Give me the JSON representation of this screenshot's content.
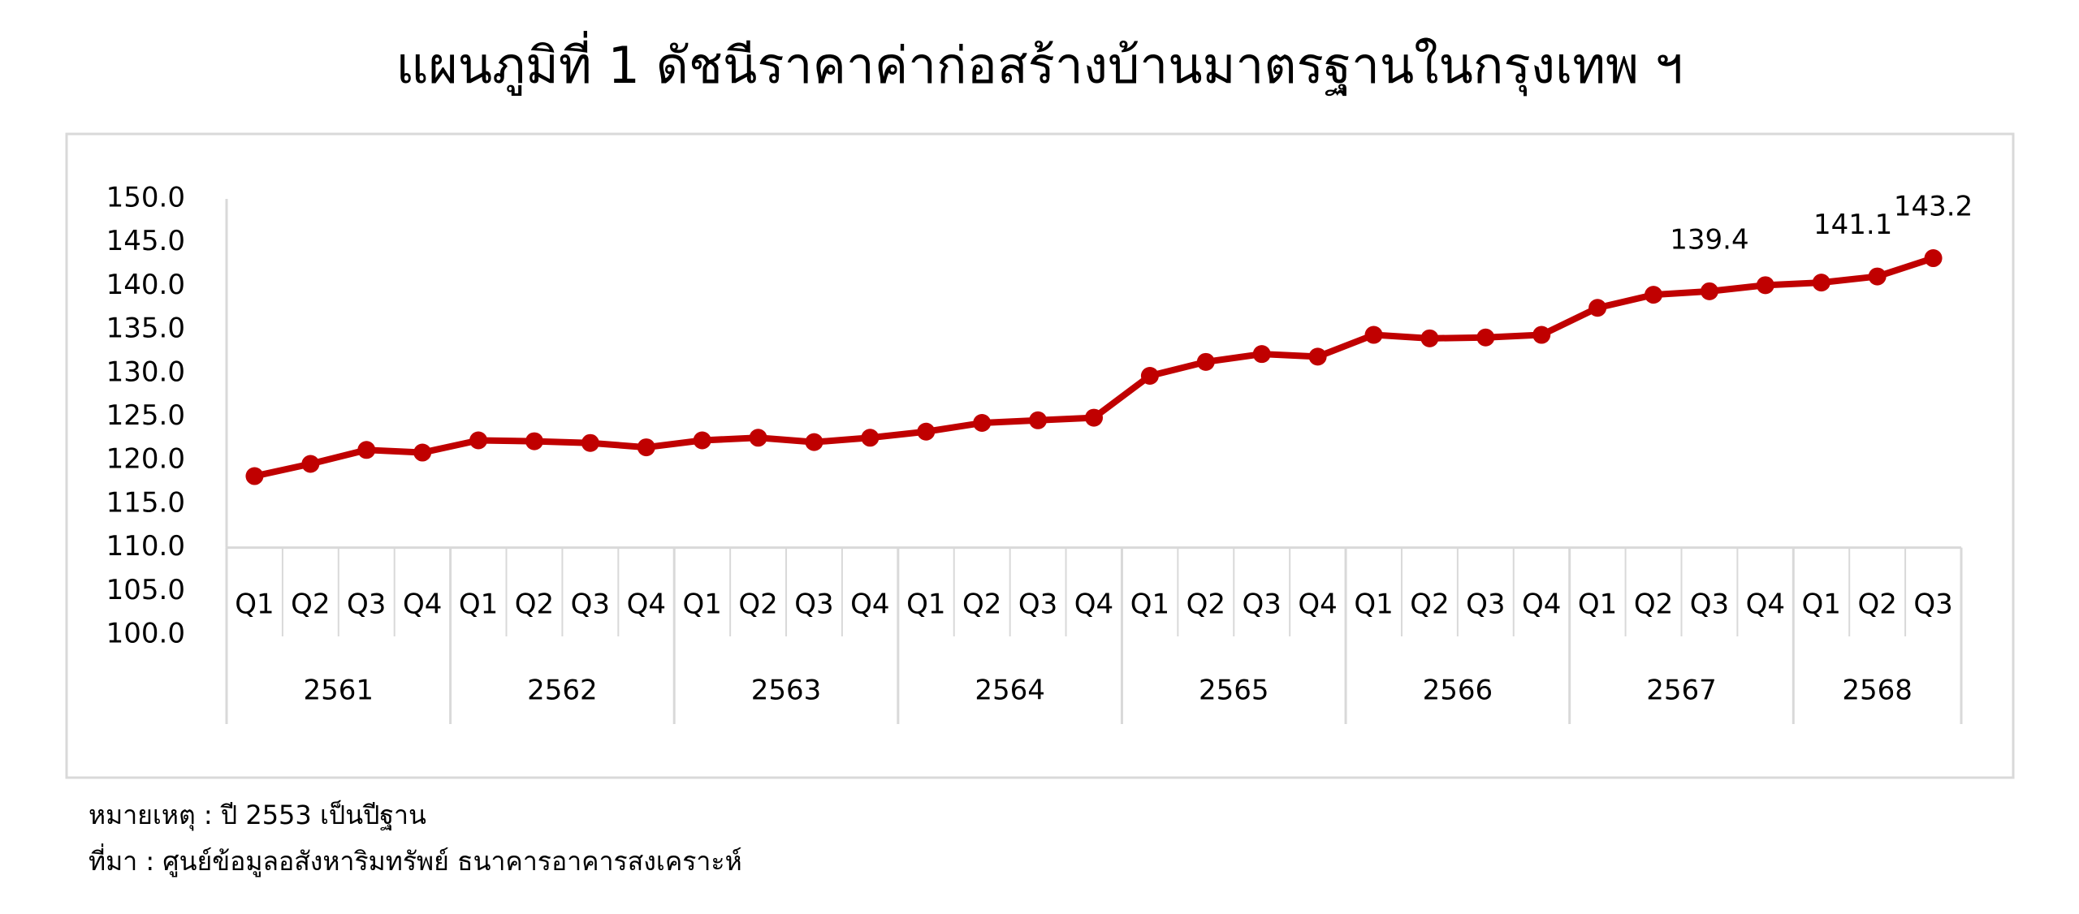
{
  "chart_data": {
    "type": "line",
    "title": "แผนภูมิที่ 1 ดัชนีราคาค่าก่อสร้างบ้านมาตรฐานในกรุงเทพ ฯ",
    "categories": [
      "Q1",
      "Q2",
      "Q3",
      "Q4",
      "Q1",
      "Q2",
      "Q3",
      "Q4",
      "Q1",
      "Q2",
      "Q3",
      "Q4",
      "Q1",
      "Q2",
      "Q3",
      "Q4",
      "Q1",
      "Q2",
      "Q3",
      "Q4",
      "Q1",
      "Q2",
      "Q3",
      "Q4",
      "Q1",
      "Q2",
      "Q3",
      "Q4",
      "Q1",
      "Q2",
      "Q3"
    ],
    "groups": [
      {
        "label": "2561",
        "span": 4
      },
      {
        "label": "2562",
        "span": 4
      },
      {
        "label": "2563",
        "span": 4
      },
      {
        "label": "2564",
        "span": 4
      },
      {
        "label": "2565",
        "span": 4
      },
      {
        "label": "2566",
        "span": 4
      },
      {
        "label": "2567",
        "span": 4
      },
      {
        "label": "2568",
        "span": 3
      }
    ],
    "values": [
      118.2,
      119.6,
      121.2,
      120.9,
      122.3,
      122.2,
      122.0,
      121.5,
      122.3,
      122.6,
      122.1,
      122.6,
      123.3,
      124.3,
      124.6,
      124.9,
      129.7,
      131.3,
      132.2,
      131.9,
      134.4,
      134.0,
      134.1,
      134.4,
      137.5,
      139.0,
      139.4,
      140.1,
      140.4,
      141.1,
      143.2
    ],
    "value_labels": [
      null,
      null,
      null,
      null,
      null,
      null,
      null,
      null,
      null,
      null,
      null,
      null,
      null,
      null,
      null,
      null,
      null,
      null,
      null,
      null,
      null,
      null,
      null,
      null,
      null,
      null,
      "139.4",
      null,
      null,
      "141.1",
      "143.2"
    ],
    "color": "#c00000",
    "ylim": [
      100,
      150
    ],
    "yticks": [
      {
        "value": 100,
        "label": "100.0"
      },
      {
        "value": 105,
        "label": "105.0"
      },
      {
        "value": 110,
        "label": "110.0"
      },
      {
        "value": 115,
        "label": "115.0"
      },
      {
        "value": 120,
        "label": "120.0"
      },
      {
        "value": 125,
        "label": "125.0"
      },
      {
        "value": 130,
        "label": "130.0"
      },
      {
        "value": 135,
        "label": "135.0"
      },
      {
        "value": 140,
        "label": "140.0"
      },
      {
        "value": 145,
        "label": "145.0"
      },
      {
        "value": 150,
        "label": "150.0"
      }
    ],
    "x_axis_crosses": 110,
    "grid": false
  },
  "notes": [
    "หมายเหตุ : ปี 2553 เป็นปีฐาน",
    "ที่มา : ศูนย์ข้อมูลอสังหาริมทรัพย์ ธนาคารอาคารสงเคราะห์"
  ]
}
